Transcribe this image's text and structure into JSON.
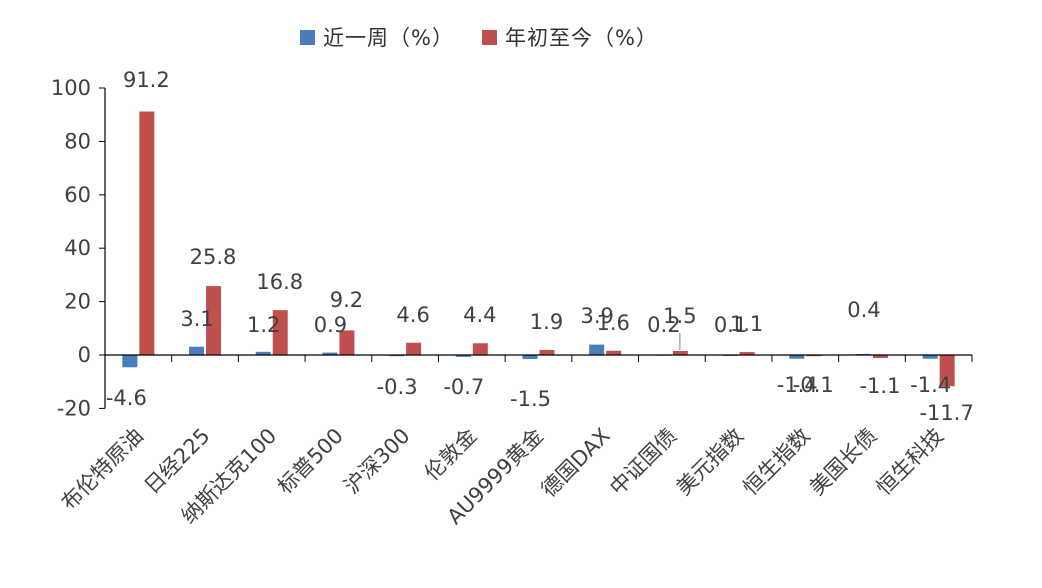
{
  "chart_data": {
    "type": "bar",
    "categories": [
      "布伦特原油",
      "日经225",
      "纳斯达克100",
      "标普500",
      "沪深300",
      "伦敦金",
      "AU9999黄金",
      "德国DAX",
      "中证国债",
      "美元指数",
      "恒生指数",
      "美国长债",
      "恒生科技"
    ],
    "series": [
      {
        "name": "近一周（%）",
        "color": "#4a7ebb",
        "values": [
          -4.6,
          3.1,
          1.2,
          0.9,
          -0.3,
          -0.7,
          -1.5,
          3.9,
          0.2,
          0.1,
          -1.4,
          0.4,
          -1.4
        ]
      },
      {
        "name": "年初至今（%）",
        "color": "#c0504d",
        "values": [
          91.2,
          25.8,
          16.8,
          9.2,
          4.6,
          4.4,
          1.9,
          1.6,
          1.5,
          1.1,
          -0.1,
          -1.1,
          -11.7
        ]
      }
    ],
    "series_labels": [
      [
        "-4.6",
        "3.1",
        "1.2",
        "0.9",
        "-0.3",
        "-0.7",
        "-1.5",
        "3.9",
        "0.2",
        "0.1",
        "-1.4",
        "0.4",
        "-1.4"
      ],
      [
        "91.2",
        "25.8",
        "16.8",
        "9.2",
        "4.6",
        "4.4",
        "1.9",
        "1.6",
        "1.5",
        "1.1",
        "-0.1",
        "-1.1",
        "-11.7"
      ]
    ],
    "yticks": [
      -20,
      0,
      20,
      40,
      60,
      80,
      100
    ],
    "ytick_labels": [
      "-20",
      "0",
      "20",
      "40",
      "60",
      "80",
      "100"
    ],
    "ylim": [
      -20,
      100
    ],
    "grid": false,
    "legend_position": "top-center"
  }
}
